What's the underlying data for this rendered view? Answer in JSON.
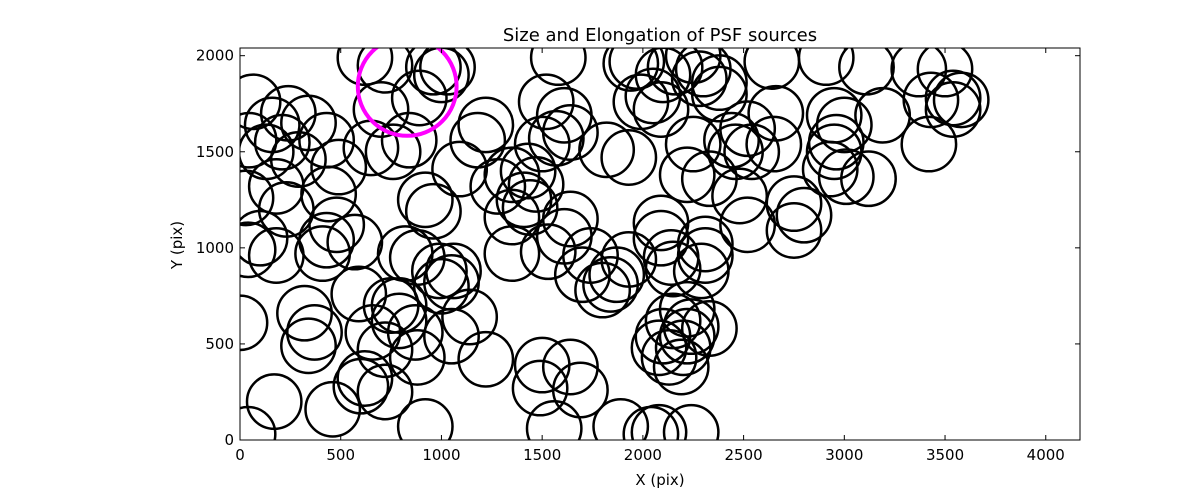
{
  "chart_data": {
    "type": "scatter",
    "title": "Size and Elongation of PSF sources",
    "xlabel": "X (pix)",
    "ylabel": "Y (pix)",
    "xlim": [
      0,
      4170
    ],
    "ylim": [
      0,
      2040
    ],
    "xticks": [
      0,
      500,
      1000,
      1500,
      2000,
      2500,
      3000,
      3500,
      4000
    ],
    "yticks": [
      0,
      500,
      1000,
      1500,
      2000
    ],
    "xtick_labels": [
      "0",
      "500",
      "1000",
      "1500",
      "2000",
      "2500",
      "3000",
      "3500",
      "4000"
    ],
    "ytick_labels": [
      "0",
      "500",
      "1000",
      "1500",
      "2000"
    ],
    "grid": false,
    "marker": "open-circle",
    "marker_radius": 135,
    "colors": {
      "sources": "#000000",
      "highlight": "#ff00ff"
    },
    "highlight": {
      "x": 830,
      "y": 1840,
      "radius": 245
    },
    "series": [
      {
        "points": [
          [
            45,
            1560
          ],
          [
            65,
            1760
          ],
          [
            30,
            1260
          ],
          [
            100,
            1050
          ],
          [
            40,
            990
          ],
          [
            180,
            960
          ],
          [
            0,
            610
          ],
          [
            160,
            1640
          ],
          [
            210,
            1550
          ],
          [
            130,
            1500
          ],
          [
            240,
            1700
          ],
          [
            180,
            1320
          ],
          [
            230,
            1200
          ],
          [
            340,
            1650
          ],
          [
            290,
            1460
          ],
          [
            430,
            1560
          ],
          [
            490,
            1420
          ],
          [
            440,
            1280
          ],
          [
            480,
            1120
          ],
          [
            430,
            1040
          ],
          [
            410,
            970
          ],
          [
            570,
            1030
          ],
          [
            320,
            660
          ],
          [
            370,
            560
          ],
          [
            340,
            490
          ],
          [
            590,
            760
          ],
          [
            660,
            560
          ],
          [
            720,
            470
          ],
          [
            620,
            320
          ],
          [
            600,
            280
          ],
          [
            720,
            250
          ],
          [
            170,
            200
          ],
          [
            460,
            160
          ],
          [
            40,
            30
          ],
          [
            620,
            1990
          ],
          [
            720,
            1950
          ],
          [
            700,
            1720
          ],
          [
            760,
            1500
          ],
          [
            650,
            1520
          ],
          [
            840,
            1560
          ],
          [
            890,
            1780
          ],
          [
            1000,
            1900
          ],
          [
            960,
            1940
          ],
          [
            1030,
            1940
          ],
          [
            1090,
            1410
          ],
          [
            1220,
            1640
          ],
          [
            1180,
            1560
          ],
          [
            920,
            1250
          ],
          [
            960,
            1190
          ],
          [
            1280,
            1320
          ],
          [
            1350,
            1380
          ],
          [
            1430,
            1400
          ],
          [
            1470,
            1330
          ],
          [
            1410,
            1250
          ],
          [
            1350,
            1160
          ],
          [
            1440,
            1210
          ],
          [
            1500,
            1540
          ],
          [
            1520,
            1760
          ],
          [
            1570,
            1570
          ],
          [
            1640,
            1600
          ],
          [
            1610,
            1690
          ],
          [
            1580,
            1990
          ],
          [
            1640,
            1150
          ],
          [
            1610,
            1060
          ],
          [
            1530,
            980
          ],
          [
            1350,
            970
          ],
          [
            820,
            970
          ],
          [
            880,
            950
          ],
          [
            990,
            880
          ],
          [
            1060,
            880
          ],
          [
            1050,
            820
          ],
          [
            1000,
            800
          ],
          [
            1140,
            640
          ],
          [
            1050,
            540
          ],
          [
            880,
            430
          ],
          [
            870,
            560
          ],
          [
            790,
            620
          ],
          [
            790,
            700
          ],
          [
            750,
            700
          ],
          [
            1220,
            420
          ],
          [
            1500,
            390
          ],
          [
            1490,
            270
          ],
          [
            1640,
            380
          ],
          [
            1690,
            260
          ],
          [
            1560,
            60
          ],
          [
            1890,
            70
          ],
          [
            2040,
            30
          ],
          [
            2080,
            40
          ],
          [
            2240,
            40
          ],
          [
            920,
            70
          ],
          [
            1840,
            810
          ],
          [
            1800,
            780
          ],
          [
            1700,
            860
          ],
          [
            1870,
            860
          ],
          [
            1930,
            940
          ],
          [
            1740,
            960
          ],
          [
            1820,
            1510
          ],
          [
            1930,
            1470
          ],
          [
            1940,
            1960
          ],
          [
            1990,
            1760
          ],
          [
            2050,
            1790
          ],
          [
            2090,
            1720
          ],
          [
            2160,
            1940
          ],
          [
            2250,
            2000
          ],
          [
            2300,
            1930
          ],
          [
            2380,
            1860
          ],
          [
            2380,
            1800
          ],
          [
            2250,
            1540
          ],
          [
            2220,
            1380
          ],
          [
            2330,
            1360
          ],
          [
            2460,
            1500
          ],
          [
            2440,
            1560
          ],
          [
            2540,
            1500
          ],
          [
            2520,
            1620
          ],
          [
            2650,
            1540
          ],
          [
            2660,
            1700
          ],
          [
            2480,
            1270
          ],
          [
            2520,
            1120
          ],
          [
            2640,
            1970
          ],
          [
            2910,
            1990
          ],
          [
            2750,
            1230
          ],
          [
            2800,
            1170
          ],
          [
            2750,
            1090
          ],
          [
            2950,
            1690
          ],
          [
            3000,
            1640
          ],
          [
            2960,
            1550
          ],
          [
            2950,
            1500
          ],
          [
            2930,
            1410
          ],
          [
            3010,
            1370
          ],
          [
            3120,
            1360
          ],
          [
            3110,
            1940
          ],
          [
            3190,
            1690
          ],
          [
            3430,
            1770
          ],
          [
            3370,
            1930
          ],
          [
            3540,
            1720
          ],
          [
            3540,
            1780
          ],
          [
            3500,
            1930
          ],
          [
            3420,
            1540
          ],
          [
            2090,
            1130
          ],
          [
            2090,
            1050
          ],
          [
            2140,
            950
          ],
          [
            2150,
            890
          ],
          [
            2310,
            1020
          ],
          [
            2310,
            960
          ],
          [
            2290,
            880
          ],
          [
            2220,
            680
          ],
          [
            2330,
            580
          ],
          [
            2240,
            590
          ],
          [
            2150,
            620
          ],
          [
            2100,
            540
          ],
          [
            2080,
            480
          ],
          [
            2130,
            430
          ],
          [
            2190,
            380
          ],
          [
            2200,
            480
          ],
          [
            2220,
            540
          ],
          [
            1970,
            1970
          ],
          [
            2100,
            1900
          ],
          [
            2280,
            1880
          ],
          [
            3580,
            1770
          ]
        ]
      }
    ]
  }
}
